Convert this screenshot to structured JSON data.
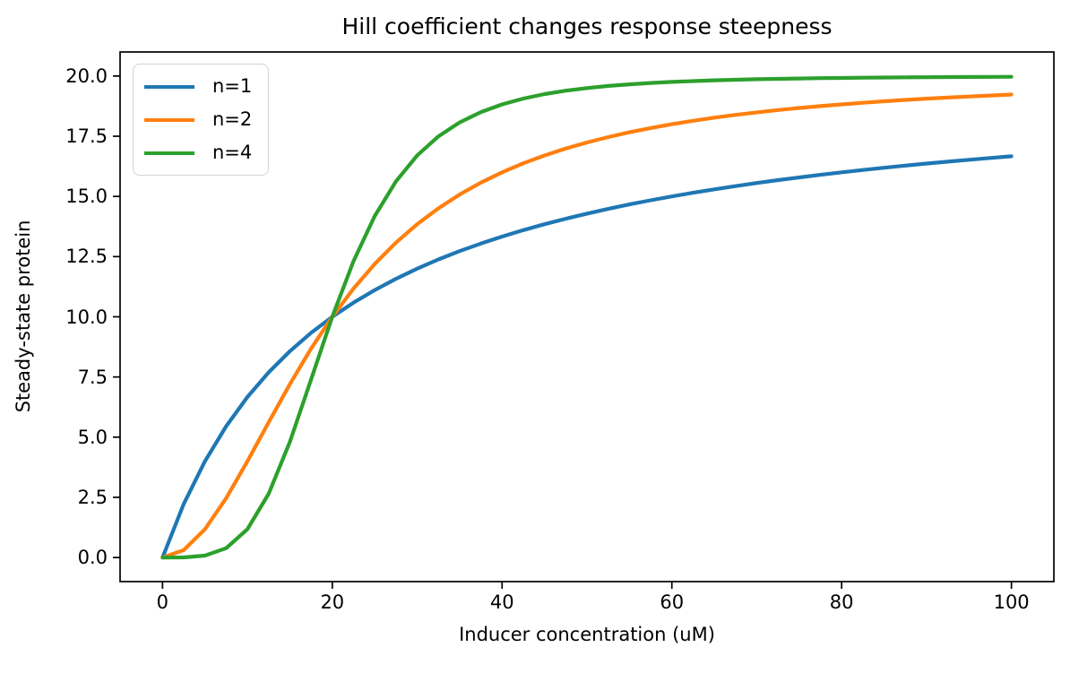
{
  "chart_data": {
    "type": "line",
    "title": "Hill coefficient changes response steepness",
    "xlabel": "Inducer concentration (uM)",
    "ylabel": "Steady-state protein",
    "xlim": [
      -5,
      105
    ],
    "ylim": [
      -1,
      21
    ],
    "xticks": [
      0,
      20,
      40,
      60,
      80,
      100
    ],
    "xtick_labels": [
      "0",
      "20",
      "40",
      "60",
      "80",
      "100"
    ],
    "yticks": [
      0,
      2.5,
      5,
      7.5,
      10,
      12.5,
      15,
      17.5,
      20
    ],
    "ytick_labels": [
      "0.0",
      "2.5",
      "5.0",
      "7.5",
      "10.0",
      "12.5",
      "15.0",
      "17.5",
      "20.0"
    ],
    "grid": false,
    "legend_position": "upper left",
    "model": "y = 20 * x^n / (20^n + x^n)",
    "x": [
      0,
      2.5,
      5,
      7.5,
      10,
      12.5,
      15,
      17.5,
      20,
      22.5,
      25,
      27.5,
      30,
      32.5,
      35,
      37.5,
      40,
      42.5,
      45,
      47.5,
      50,
      52.5,
      55,
      57.5,
      60,
      62.5,
      65,
      67.5,
      70,
      72.5,
      75,
      77.5,
      80,
      82.5,
      85,
      87.5,
      90,
      92.5,
      95,
      97.5,
      100
    ],
    "series": [
      {
        "name": "n=1",
        "color": "#1f77b4",
        "values": [
          0,
          2.222,
          4.0,
          5.455,
          6.667,
          7.692,
          8.571,
          9.333,
          10.0,
          10.588,
          11.111,
          11.579,
          12.0,
          12.381,
          12.727,
          13.043,
          13.333,
          13.6,
          13.846,
          14.074,
          14.286,
          14.483,
          14.667,
          14.839,
          15.0,
          15.152,
          15.294,
          15.429,
          15.556,
          15.676,
          15.789,
          15.897,
          16.0,
          16.098,
          16.19,
          16.279,
          16.364,
          16.444,
          16.522,
          16.596,
          16.667
        ]
      },
      {
        "name": "n=2",
        "color": "#ff7f0e",
        "values": [
          0,
          0.308,
          1.176,
          2.466,
          4.0,
          5.618,
          7.2,
          8.673,
          10.0,
          11.172,
          12.195,
          13.081,
          13.846,
          14.506,
          15.077,
          15.571,
          16.0,
          16.375,
          16.701,
          16.988,
          17.241,
          17.465,
          17.664,
          17.841,
          18.0,
          18.142,
          18.27,
          18.386,
          18.491,
          18.586,
          18.672,
          18.751,
          18.824,
          18.89,
          18.951,
          19.007,
          19.059,
          19.107,
          19.151,
          19.192,
          19.231
        ]
      },
      {
        "name": "n=4",
        "color": "#2ca02c",
        "values": [
          0,
          0.005,
          0.078,
          0.388,
          1.176,
          2.648,
          4.807,
          7.391,
          10.0,
          12.313,
          14.189,
          15.628,
          16.701,
          17.492,
          18.073,
          18.503,
          18.824,
          19.065,
          19.249,
          19.391,
          19.501,
          19.588,
          19.656,
          19.711,
          19.756,
          19.792,
          19.822,
          19.847,
          19.868,
          19.885,
          19.899,
          19.912,
          19.922,
          19.931,
          19.939,
          19.946,
          19.951,
          19.956,
          19.961,
          19.965,
          19.968
        ]
      }
    ]
  }
}
